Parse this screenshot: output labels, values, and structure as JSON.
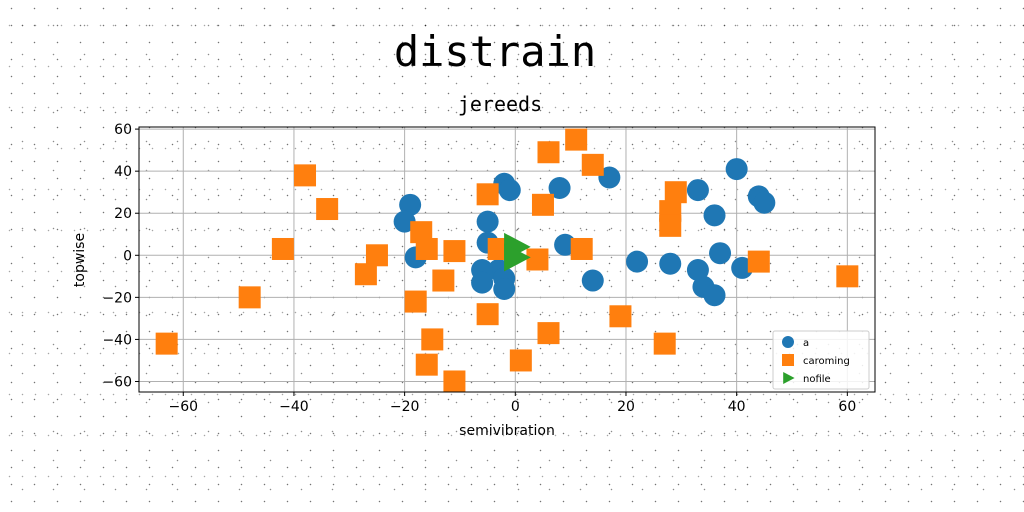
{
  "chart_data": {
    "type": "scatter",
    "title": "distrain",
    "subtitle": "jereeds",
    "xlabel": "semivibration",
    "ylabel": "topwise",
    "xlim": [
      -68,
      65
    ],
    "ylim": [
      -65,
      61
    ],
    "xticks": [
      -60,
      -40,
      -20,
      0,
      20,
      40,
      60
    ],
    "yticks": [
      -60,
      -40,
      -20,
      0,
      20,
      40,
      60
    ],
    "xtick_labels": [
      "−60",
      "−40",
      "−20",
      "0",
      "20",
      "40",
      "60"
    ],
    "ytick_labels": [
      "−60",
      "−40",
      "−20",
      "0",
      "20",
      "40",
      "60"
    ],
    "grid": true,
    "legend": "lower-right",
    "series": [
      {
        "name": "a",
        "color": "#1f77b4",
        "marker": "circle",
        "points": [
          [
            -19,
            24
          ],
          [
            -20,
            16
          ],
          [
            -18,
            -1
          ],
          [
            -5,
            16
          ],
          [
            -5,
            6
          ],
          [
            -3,
            -7
          ],
          [
            -6,
            -7
          ],
          [
            -6,
            -13
          ],
          [
            -2,
            -11
          ],
          [
            -2,
            -16
          ],
          [
            -2,
            34
          ],
          [
            -1,
            31
          ],
          [
            9,
            5
          ],
          [
            8,
            32
          ],
          [
            17,
            37
          ],
          [
            14,
            -12
          ],
          [
            22,
            -3
          ],
          [
            28,
            17
          ],
          [
            28,
            -4
          ],
          [
            33,
            31
          ],
          [
            33,
            -7
          ],
          [
            34,
            -15
          ],
          [
            36,
            19
          ],
          [
            36,
            -19
          ],
          [
            37,
            1
          ],
          [
            40,
            41
          ],
          [
            41,
            -6
          ],
          [
            44,
            28
          ],
          [
            45,
            25
          ]
        ]
      },
      {
        "name": "caroming",
        "color": "#ff7f0e",
        "marker": "square",
        "points": [
          [
            -38,
            38
          ],
          [
            -34,
            22
          ],
          [
            -42,
            3
          ],
          [
            -25,
            0
          ],
          [
            -27,
            -9
          ],
          [
            -48,
            -20
          ],
          [
            -63,
            -42
          ],
          [
            -17,
            11
          ],
          [
            -16,
            3
          ],
          [
            -11,
            2
          ],
          [
            -13,
            -12
          ],
          [
            -18,
            -22
          ],
          [
            -15,
            -40
          ],
          [
            -16,
            -52
          ],
          [
            -11,
            -60
          ],
          [
            -5,
            29
          ],
          [
            -3,
            3
          ],
          [
            -5,
            -28
          ],
          [
            5,
            24
          ],
          [
            4,
            -2
          ],
          [
            6,
            -37
          ],
          [
            1,
            -50
          ],
          [
            6,
            49
          ],
          [
            11,
            55
          ],
          [
            14,
            43
          ],
          [
            12,
            3
          ],
          [
            19,
            -29
          ],
          [
            29,
            30
          ],
          [
            28,
            21
          ],
          [
            28,
            14
          ],
          [
            27,
            -42
          ],
          [
            44,
            -3
          ],
          [
            60,
            -10
          ]
        ]
      },
      {
        "name": "nofile",
        "color": "#2ca02c",
        "marker": "triangle-right",
        "points": [
          [
            0,
            4
          ],
          [
            0,
            -1
          ]
        ]
      }
    ]
  }
}
